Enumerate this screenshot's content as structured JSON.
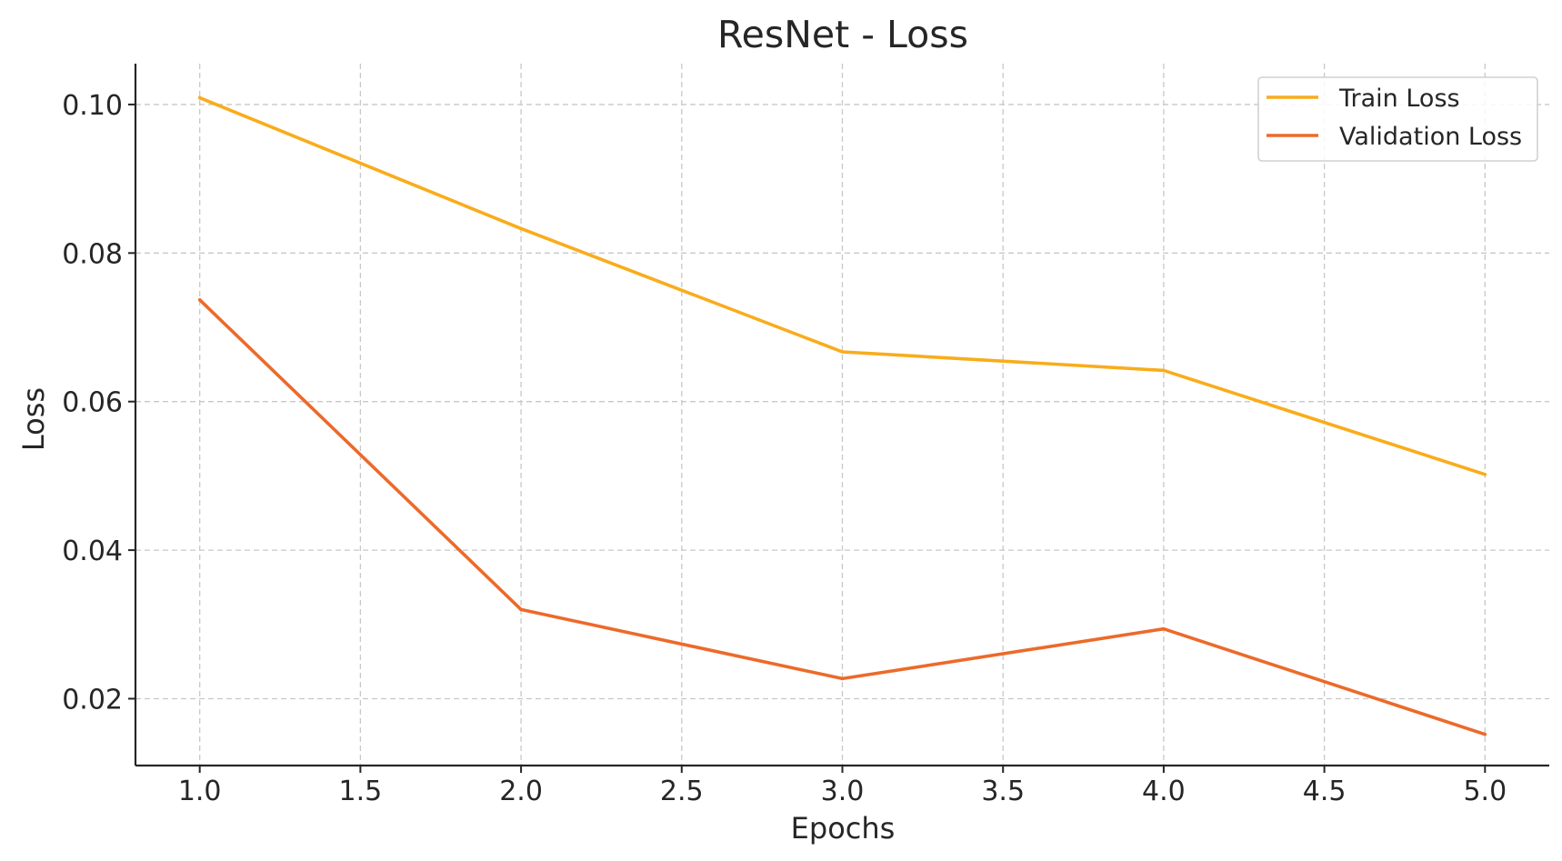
{
  "chart_data": {
    "type": "line",
    "title": "ResNet - Loss",
    "xlabel": "Epochs",
    "ylabel": "Loss",
    "x": [
      1,
      2,
      3,
      4,
      5
    ],
    "series": [
      {
        "name": "Train Loss",
        "color": "#F9AC1B",
        "values": [
          0.1009,
          0.0833,
          0.0667,
          0.0642,
          0.0502
        ]
      },
      {
        "name": "Validation Loss",
        "color": "#EC6A2A",
        "values": [
          0.0737,
          0.032,
          0.0227,
          0.0294,
          0.0152
        ]
      }
    ],
    "xticks": [
      1.0,
      1.5,
      2.0,
      2.5,
      3.0,
      3.5,
      4.0,
      4.5,
      5.0
    ],
    "xtick_labels": [
      "1.0",
      "1.5",
      "2.0",
      "2.5",
      "3.0",
      "3.5",
      "4.0",
      "4.5",
      "5.0"
    ],
    "yticks": [
      0.02,
      0.04,
      0.06,
      0.08,
      0.1
    ],
    "ytick_labels": [
      "0.02",
      "0.04",
      "0.06",
      "0.08",
      "0.10"
    ],
    "xlim": [
      0.8,
      5.2
    ],
    "ylim": [
      0.011,
      0.1055
    ],
    "grid": true,
    "legend_position": "top-right"
  }
}
